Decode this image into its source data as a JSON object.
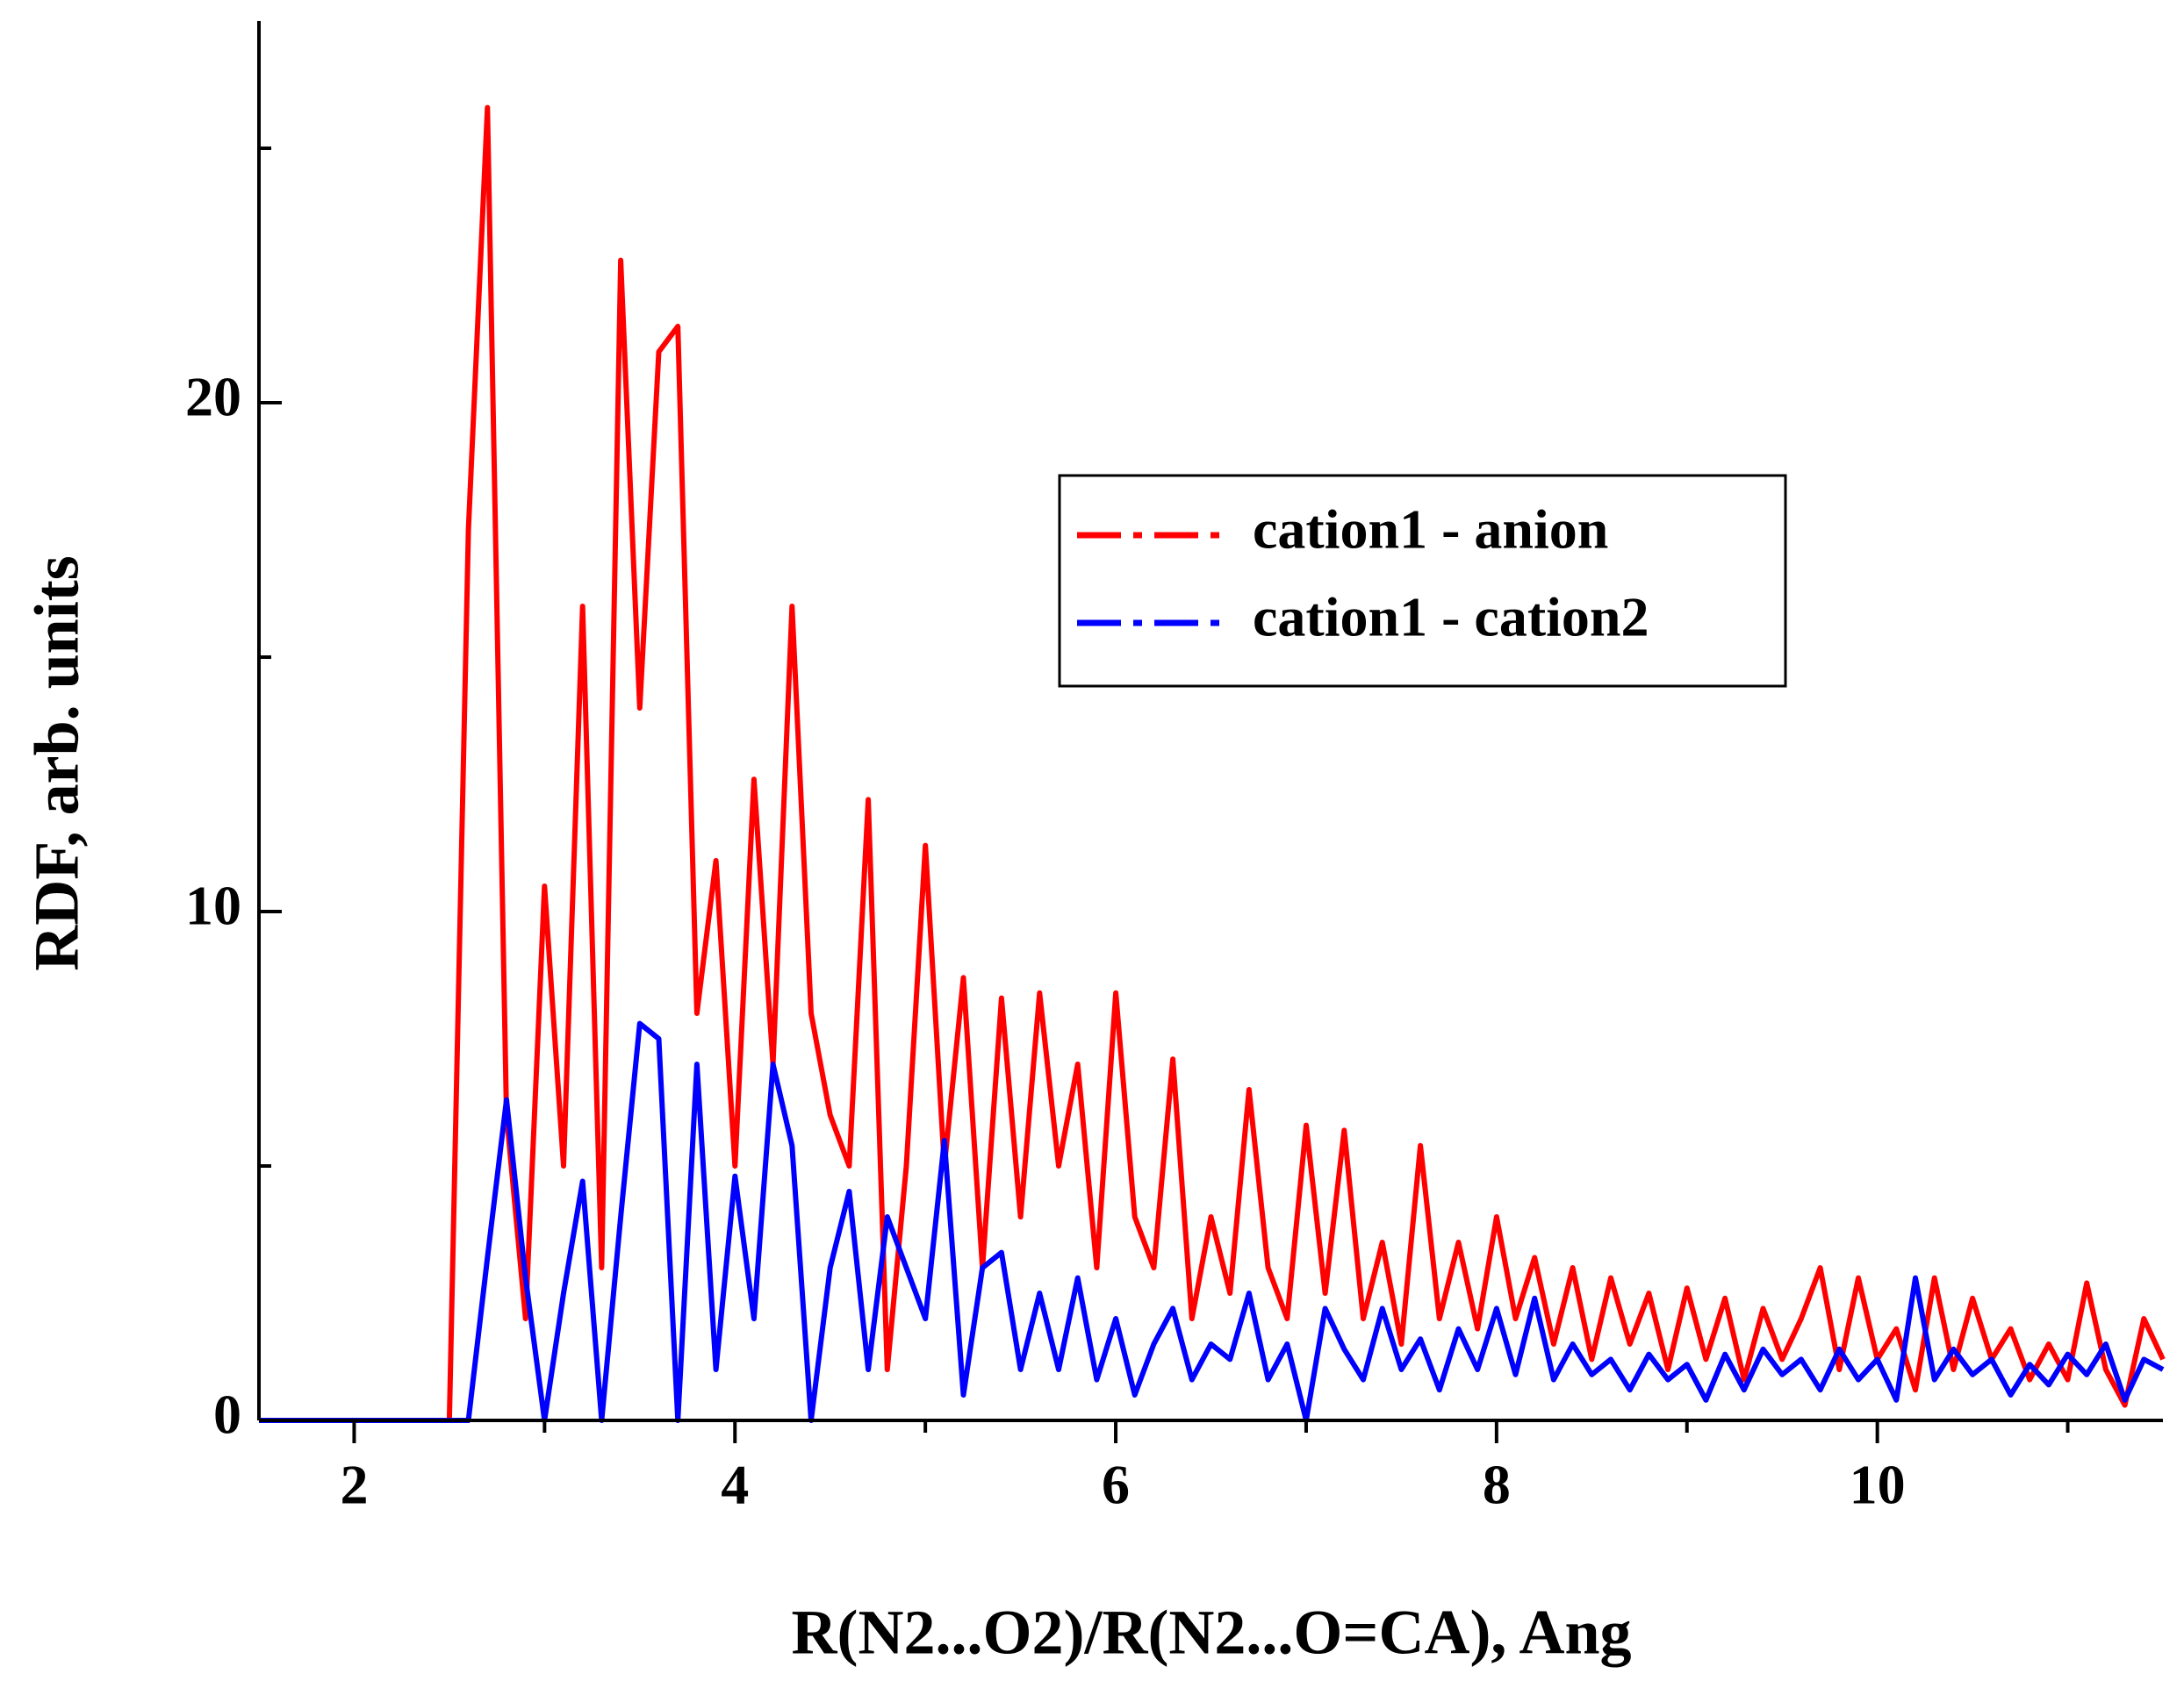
{
  "chart_data": {
    "type": "line",
    "x_label": "R(N2...O2)/R(N2...O=CA), Ang",
    "y_label": "RDF, arb. units",
    "x": [
      1.5,
      1.6,
      1.7,
      1.8,
      1.9,
      2.0,
      2.1,
      2.2,
      2.3,
      2.4,
      2.5,
      2.6,
      2.7,
      2.8,
      2.9,
      3.0,
      3.1,
      3.2,
      3.3,
      3.4,
      3.5,
      3.6,
      3.7,
      3.8,
      3.9,
      4.0,
      4.1,
      4.2,
      4.3,
      4.4,
      4.5,
      4.6,
      4.7,
      4.8,
      4.9,
      5.0,
      5.1,
      5.2,
      5.3,
      5.4,
      5.5,
      5.6,
      5.7,
      5.8,
      5.9,
      6.0,
      6.1,
      6.2,
      6.3,
      6.4,
      6.5,
      6.6,
      6.7,
      6.8,
      6.9,
      7.0,
      7.1,
      7.2,
      7.3,
      7.4,
      7.5,
      7.6,
      7.7,
      7.8,
      7.9,
      8.0,
      8.1,
      8.2,
      8.3,
      8.4,
      8.5,
      8.6,
      8.7,
      8.8,
      8.9,
      9.0,
      9.1,
      9.2,
      9.3,
      9.4,
      9.5,
      9.6,
      9.7,
      9.8,
      9.9,
      10.0,
      10.1,
      10.2,
      10.3,
      10.4,
      10.5,
      10.6,
      10.7,
      10.8,
      10.9,
      11.0,
      11.1,
      11.2,
      11.3,
      11.4,
      11.5
    ],
    "series": [
      {
        "name": "cation1 - anion",
        "color": "#ff0000",
        "values": [
          0,
          0,
          0,
          0,
          0,
          0,
          0,
          0,
          0,
          0,
          0,
          17.5,
          25.8,
          6,
          2,
          10.5,
          5,
          16,
          3,
          22.8,
          14,
          21,
          21.5,
          8,
          11,
          5,
          12.6,
          7,
          16,
          8,
          6,
          5,
          12.2,
          1,
          5,
          11.3,
          5,
          8.7,
          3,
          8.3,
          4,
          8.4,
          5,
          7,
          3,
          8.4,
          4,
          3,
          7.1,
          2,
          4,
          2.5,
          6.5,
          3,
          2,
          5.8,
          2.5,
          5.7,
          2,
          3.5,
          1.5,
          5.4,
          2,
          3.5,
          1.8,
          4,
          2,
          3.2,
          1.5,
          3,
          1.2,
          2.8,
          1.5,
          2.5,
          1,
          2.6,
          1.2,
          2.4,
          0.8,
          2.2,
          1.2,
          2,
          3,
          1,
          2.8,
          1.2,
          1.8,
          0.6,
          2.8,
          1,
          2.4,
          1.2,
          1.8,
          0.8,
          1.5,
          0.8,
          2.7,
          1,
          0.3,
          2,
          1.2
        ]
      },
      {
        "name": "cation1 - cation2",
        "color": "#0000ff",
        "values": [
          0,
          0,
          0,
          0,
          0,
          0,
          0,
          0,
          0,
          0,
          0,
          0,
          3.2,
          6.3,
          2.8,
          0,
          2.5,
          4.7,
          0,
          4,
          7.8,
          7.5,
          0,
          7,
          1,
          4.8,
          2,
          7,
          5.4,
          0,
          3,
          4.5,
          1,
          4,
          3,
          2,
          5.5,
          0.5,
          3,
          3.3,
          1,
          2.5,
          1,
          2.8,
          0.8,
          2,
          0.5,
          1.5,
          2.2,
          0.8,
          1.5,
          1.2,
          2.5,
          0.8,
          1.5,
          0,
          2.2,
          1.4,
          0.8,
          2.2,
          1,
          1.6,
          0.6,
          1.8,
          1,
          2.2,
          0.9,
          2.4,
          0.8,
          1.5,
          0.9,
          1.2,
          0.6,
          1.3,
          0.8,
          1.1,
          0.4,
          1.3,
          0.6,
          1.4,
          0.9,
          1.2,
          0.6,
          1.4,
          0.8,
          1.2,
          0.4,
          2.8,
          0.8,
          1.4,
          0.9,
          1.2,
          0.5,
          1.1,
          0.7,
          1.3,
          0.9,
          1.5,
          0.4,
          1.2,
          1
        ]
      }
    ],
    "xlim": [
      1.5,
      11.5
    ],
    "ylim": [
      0,
      27.5
    ],
    "xticks": [
      2,
      4,
      6,
      8,
      10
    ],
    "yticks": [
      0,
      10,
      20
    ],
    "xminorticks": [
      3,
      5,
      7,
      9,
      11
    ],
    "yminorticks": [
      5,
      15,
      25
    ],
    "legend": "upper right",
    "grid": false
  }
}
